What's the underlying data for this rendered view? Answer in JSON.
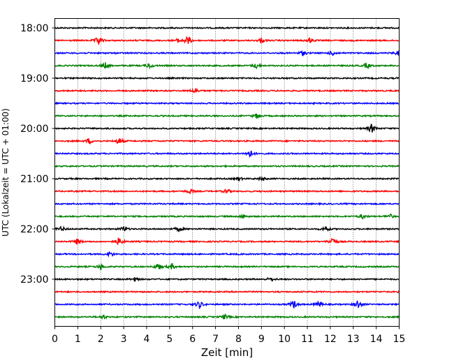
{
  "chart_data": {
    "type": "line",
    "title": "",
    "xlabel": "Zeit  [min]",
    "ylabel": "UTC (Lokalzeit = UTC + 01:00)",
    "xlim": [
      0,
      15
    ],
    "x_ticks": [
      "0",
      "1",
      "2",
      "3",
      "4",
      "5",
      "6",
      "7",
      "8",
      "9",
      "10",
      "11",
      "12",
      "13",
      "14",
      "15"
    ],
    "y_tick_labels": [
      "18:00",
      "19:00",
      "20:00",
      "21:00",
      "22:00",
      "23:00"
    ],
    "grid": "vertical dotted at each minute",
    "trace_interval_min": 15,
    "trace_colors": [
      "#000000",
      "#ff0000",
      "#0000ff",
      "#008000"
    ],
    "traces": [
      {
        "start": "18:00",
        "events": []
      },
      {
        "start": "18:15",
        "events": [
          [
            1.9,
            0.9
          ],
          [
            5.8,
            1.0
          ],
          [
            5.4,
            0.5
          ],
          [
            9.0,
            0.5
          ],
          [
            11.1,
            0.5
          ]
        ]
      },
      {
        "start": "18:30",
        "events": [
          [
            10.8,
            0.5
          ],
          [
            12.1,
            0.5
          ],
          [
            15.0,
            0.7
          ]
        ]
      },
      {
        "start": "18:45",
        "events": [
          [
            2.2,
            0.6
          ],
          [
            4.1,
            0.6
          ],
          [
            8.8,
            0.6
          ],
          [
            13.6,
            0.6
          ]
        ]
      },
      {
        "start": "19:00",
        "events": []
      },
      {
        "start": "19:15",
        "events": [
          [
            6.1,
            0.6
          ]
        ]
      },
      {
        "start": "19:30",
        "events": []
      },
      {
        "start": "19:45",
        "events": [
          [
            8.8,
            0.5
          ]
        ]
      },
      {
        "start": "20:00",
        "events": [
          [
            13.8,
            1.0
          ]
        ]
      },
      {
        "start": "20:15",
        "events": [
          [
            1.5,
            0.6
          ],
          [
            2.8,
            0.7
          ]
        ]
      },
      {
        "start": "20:30",
        "events": [
          [
            8.5,
            0.8
          ]
        ]
      },
      {
        "start": "20:45",
        "events": []
      },
      {
        "start": "21:00",
        "events": [
          [
            8.0,
            0.4
          ],
          [
            9.0,
            0.4
          ]
        ]
      },
      {
        "start": "21:15",
        "events": [
          [
            5.9,
            0.5
          ],
          [
            7.5,
            0.5
          ]
        ]
      },
      {
        "start": "21:30",
        "events": []
      },
      {
        "start": "21:45",
        "events": [
          [
            8.2,
            0.4
          ],
          [
            13.4,
            0.5
          ],
          [
            14.6,
            0.5
          ]
        ]
      },
      {
        "start": "22:00",
        "events": [
          [
            0.3,
            0.5
          ],
          [
            3.0,
            0.5
          ],
          [
            5.4,
            0.5
          ],
          [
            11.8,
            0.5
          ]
        ]
      },
      {
        "start": "22:15",
        "events": [
          [
            1.0,
            0.7
          ],
          [
            2.8,
            0.9
          ],
          [
            12.1,
            1.0
          ]
        ]
      },
      {
        "start": "22:30",
        "events": [
          [
            2.4,
            0.6
          ]
        ]
      },
      {
        "start": "22:45",
        "events": [
          [
            2.0,
            0.6
          ],
          [
            4.5,
            0.8
          ],
          [
            5.1,
            0.6
          ]
        ]
      },
      {
        "start": "23:00",
        "events": [
          [
            3.5,
            0.4
          ],
          [
            9.4,
            0.4
          ]
        ]
      },
      {
        "start": "23:15",
        "events": []
      },
      {
        "start": "23:30",
        "events": [
          [
            6.3,
            0.8
          ],
          [
            10.4,
            0.9
          ],
          [
            11.5,
            0.7
          ],
          [
            13.2,
            0.9
          ]
        ]
      },
      {
        "start": "23:45",
        "events": [
          [
            2.1,
            0.4
          ],
          [
            7.4,
            0.5
          ]
        ]
      }
    ]
  }
}
